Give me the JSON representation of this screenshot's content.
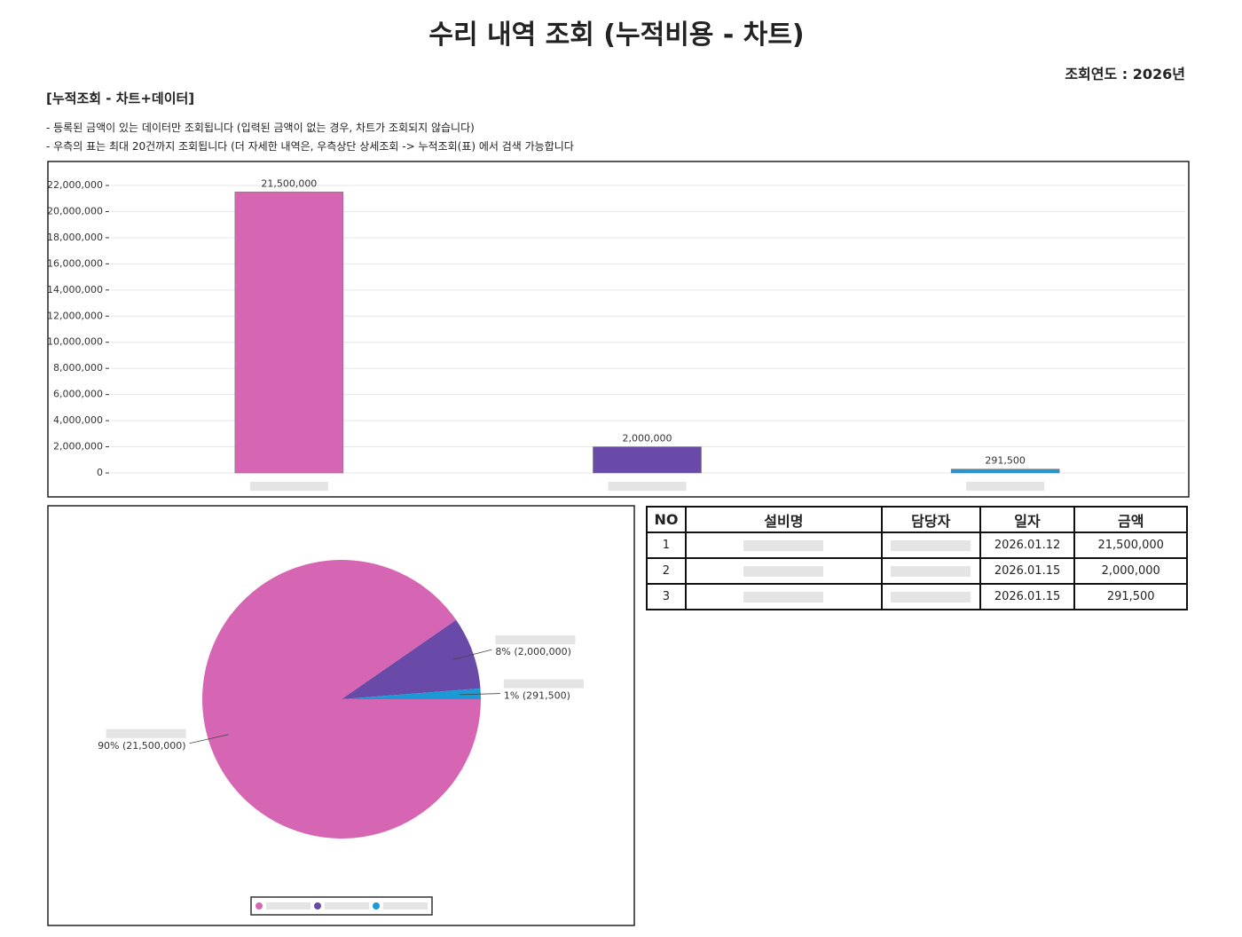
{
  "header": {
    "title": "수리 내역 조회 (누적비용 - 차트)",
    "year": "조회연도 : 2026년",
    "section": "[누적조회 - 차트+데이터]",
    "notes": [
      "- 등록된 금액이 있는 데이터만 조회됩니다 (입력된 금액이 없는 경우, 차트가 조회되지 않습니다)",
      "- 우측의 표는 최대 20건까지 조회됩니다 (더 자세한 내역은, 우측상단 상세조회 -> 누적조회(표) 에서 검색 가능합니다"
    ]
  },
  "chart_data": [
    {
      "type": "bar",
      "categories": [
        null,
        null,
        null
      ],
      "values": [
        21500000,
        2000000,
        291500
      ],
      "value_labels": [
        "21,500,000",
        "2,000,000",
        "291,500"
      ],
      "colors": [
        "#d666b4",
        "#6a4aa8",
        "#1a9ad6"
      ],
      "ylim": [
        0,
        22000000
      ],
      "yticks": [
        0,
        {
          "value": 2000000,
          "label": "2,000,000"
        },
        {
          "value": 4000000,
          "label": "4,000,000"
        },
        {
          "value": 6000000,
          "label": "6,000,000"
        },
        {
          "value": 8000000,
          "label": "8,000,000"
        },
        {
          "value": 10000000,
          "label": "10,000,000"
        },
        {
          "value": 12000000,
          "label": "12,000,000"
        },
        {
          "value": 14000000,
          "label": "14,000,000"
        },
        {
          "value": 16000000,
          "label": "16,000,000"
        },
        {
          "value": 18000000,
          "label": "18,000,000"
        },
        {
          "value": 20000000,
          "label": "20,000,000"
        },
        {
          "value": 22000000,
          "label": "22,000,000"
        }
      ],
      "grid": true
    },
    {
      "type": "pie",
      "labels": [
        null,
        null,
        null
      ],
      "values": [
        21500000,
        2000000,
        291500
      ],
      "value_labels": [
        "90% (21,500,000)",
        "8% (2,000,000)",
        "1% (291,500)"
      ],
      "colors": [
        "#d666b4",
        "#6a4aa8",
        "#1a9ad6"
      ]
    }
  ],
  "table": {
    "headers": [
      "NO",
      "설비명",
      "담당자",
      "일자",
      "금액"
    ],
    "rows": [
      [
        "1",
        null,
        null,
        "2026.01.12",
        "21,500,000"
      ],
      [
        "2",
        null,
        null,
        "2026.01.15",
        "2,000,000"
      ],
      [
        "3",
        null,
        null,
        "2026.01.15",
        "291,500"
      ]
    ]
  }
}
